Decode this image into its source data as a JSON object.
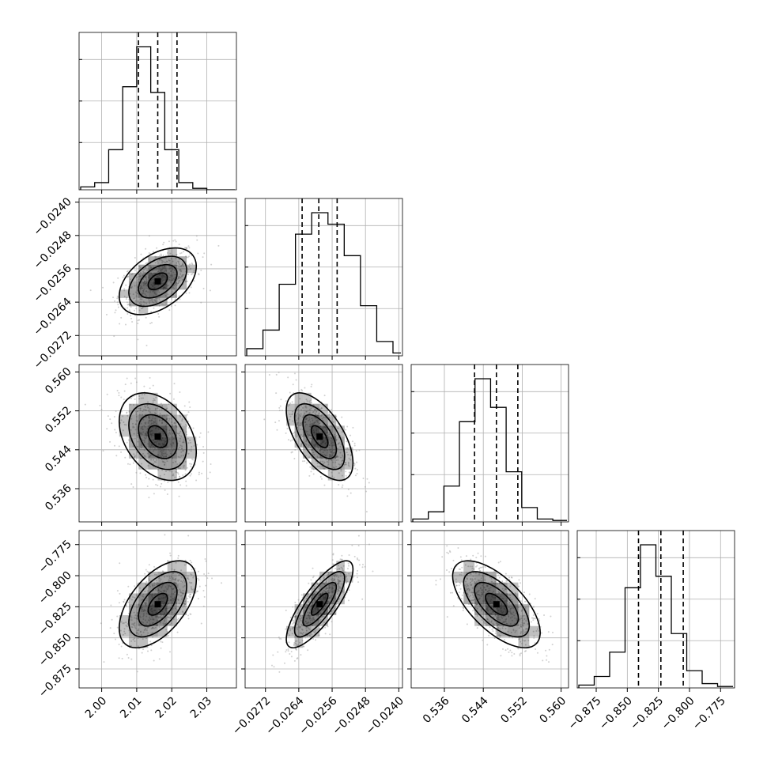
{
  "chart_data": {
    "type": "corner",
    "grid": true,
    "parameters": [
      {
        "range": [
          1.994,
          2.038
        ],
        "ticks": [
          {
            "value": 2.0,
            "label": "2.00"
          },
          {
            "value": 2.01,
            "label": "2.01"
          },
          {
            "value": 2.02,
            "label": "2.02"
          },
          {
            "value": 2.03,
            "label": "2.03"
          }
        ],
        "histogram": {
          "bin_edges": [
            1.994,
            1.998,
            2.002,
            2.006,
            2.01,
            2.014,
            2.018,
            2.022,
            2.026,
            2.03,
            2.034,
            2.038
          ],
          "counts": [
            0.02,
            0.05,
            0.28,
            0.72,
            1.0,
            0.68,
            0.28,
            0.05,
            0.01,
            0.0,
            0.0
          ]
        },
        "quantiles": [
          2.0105,
          2.016,
          2.0215
        ],
        "mean": 2.016,
        "sd": 0.0055
      },
      {
        "range": [
          -0.02765,
          -0.02395
        ],
        "ticks": [
          {
            "value": -0.0272,
            "label": "−0.0272"
          },
          {
            "value": -0.0264,
            "label": "−0.0264"
          },
          {
            "value": -0.0256,
            "label": "−0.0256"
          },
          {
            "value": -0.0248,
            "label": "−0.0248"
          },
          {
            "value": -0.024,
            "label": "−0.0240"
          }
        ],
        "histogram": {
          "bin_edges": [
            -0.02765,
            -0.02726,
            -0.02687,
            -0.02648,
            -0.02609,
            -0.0257,
            -0.02531,
            -0.02492,
            -0.02453,
            -0.02414,
            -0.02395
          ],
          "counts": [
            0.05,
            0.18,
            0.5,
            0.85,
            1.0,
            0.92,
            0.7,
            0.35,
            0.1,
            0.02
          ]
        },
        "quantiles": [
          -0.02632,
          -0.02592,
          -0.02548
        ],
        "mean": -0.0259,
        "sd": 0.0004
      },
      {
        "range": [
          0.5295,
          0.5612
        ],
        "ticks": [
          {
            "value": 0.536,
            "label": "0.536"
          },
          {
            "value": 0.544,
            "label": "0.544"
          },
          {
            "value": 0.552,
            "label": "0.552"
          },
          {
            "value": 0.56,
            "label": "0.560"
          }
        ],
        "histogram": {
          "bin_edges": [
            0.5295,
            0.5327,
            0.5359,
            0.5391,
            0.5423,
            0.5455,
            0.5487,
            0.5519,
            0.5551,
            0.5583,
            0.5612
          ],
          "counts": [
            0.02,
            0.07,
            0.25,
            0.7,
            1.0,
            0.8,
            0.35,
            0.1,
            0.02,
            0.01
          ]
        },
        "quantiles": [
          0.5422,
          0.5467,
          0.5511
        ],
        "mean": 0.5467,
        "sd": 0.0045
      },
      {
        "range": [
          -0.889,
          -0.765
        ],
        "ticks": [
          {
            "value": -0.875,
            "label": "−0.875"
          },
          {
            "value": -0.85,
            "label": "−0.850"
          },
          {
            "value": -0.825,
            "label": "−0.825"
          },
          {
            "value": -0.8,
            "label": "−0.800"
          },
          {
            "value": -0.775,
            "label": "−0.775"
          }
        ],
        "histogram": {
          "bin_edges": [
            -0.889,
            -0.8766,
            -0.8642,
            -0.8518,
            -0.8394,
            -0.827,
            -0.8146,
            -0.8022,
            -0.7898,
            -0.7774,
            -0.765
          ],
          "counts": [
            0.02,
            0.08,
            0.25,
            0.7,
            1.0,
            0.78,
            0.38,
            0.12,
            0.03,
            0.01
          ]
        },
        "quantiles": [
          -0.841,
          -0.823,
          -0.805
        ],
        "mean": -0.823,
        "sd": 0.0175
      }
    ],
    "correlations": [
      [
        1.0,
        0.45,
        -0.35,
        0.55
      ],
      [
        0.45,
        1.0,
        -0.6,
        0.8
      ],
      [
        -0.35,
        -0.6,
        1.0,
        -0.65
      ],
      [
        0.55,
        0.8,
        -0.65,
        1.0
      ]
    ],
    "contour_levels_sigma": [
      0.5,
      1.0,
      1.5,
      2.0
    ],
    "colors": {
      "line": "#000000",
      "grid": "#b0b0b0",
      "points": "#9a9a9a",
      "density": "#000000"
    }
  }
}
